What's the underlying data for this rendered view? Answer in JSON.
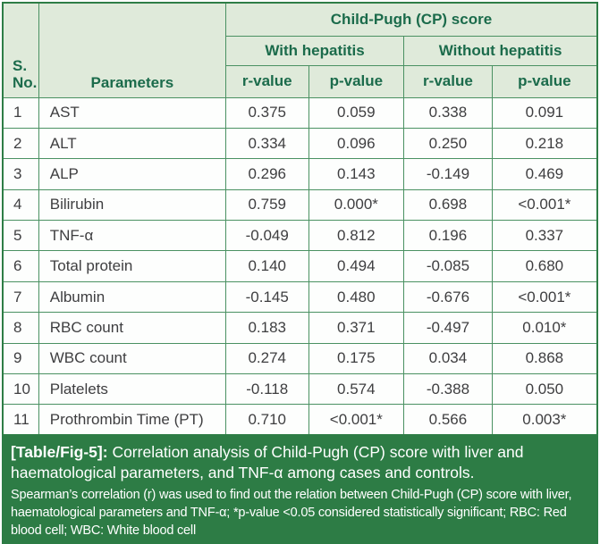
{
  "table": {
    "header": {
      "sno_line1": "S.",
      "sno_line2": "No.",
      "parameters": "Parameters",
      "group_title": "Child-Pugh (CP) score",
      "subgroups": [
        "With hepatitis",
        "Without hepatitis"
      ],
      "value_cols": [
        "r-value",
        "p-value",
        "r-value",
        "p-value"
      ]
    },
    "rows": [
      {
        "sno": "1",
        "parameter": "AST",
        "values": [
          "0.375",
          "0.059",
          "0.338",
          "0.091"
        ]
      },
      {
        "sno": "2",
        "parameter": "ALT",
        "values": [
          "0.334",
          "0.096",
          "0.250",
          "0.218"
        ]
      },
      {
        "sno": "3",
        "parameter": "ALP",
        "values": [
          "0.296",
          "0.143",
          "-0.149",
          "0.469"
        ]
      },
      {
        "sno": "4",
        "parameter": "Bilirubin",
        "values": [
          "0.759",
          "0.000*",
          "0.698",
          "<0.001*"
        ]
      },
      {
        "sno": "5",
        "parameter": "TNF-α",
        "values": [
          "-0.049",
          "0.812",
          "0.196",
          "0.337"
        ]
      },
      {
        "sno": "6",
        "parameter": "Total protein",
        "values": [
          "0.140",
          "0.494",
          "-0.085",
          "0.680"
        ]
      },
      {
        "sno": "7",
        "parameter": "Albumin",
        "values": [
          "-0.145",
          "0.480",
          "-0.676",
          "<0.001*"
        ]
      },
      {
        "sno": "8",
        "parameter": "RBC count",
        "values": [
          "0.183",
          "0.371",
          "-0.497",
          "0.010*"
        ]
      },
      {
        "sno": "9",
        "parameter": "WBC count",
        "values": [
          "0.274",
          "0.175",
          "0.034",
          "0.868"
        ]
      },
      {
        "sno": "10",
        "parameter": "Platelets",
        "values": [
          "-0.118",
          "0.574",
          "-0.388",
          "0.050"
        ]
      },
      {
        "sno": "11",
        "parameter": "Prothrombin Time (PT)",
        "values": [
          "0.710",
          "<0.001*",
          "0.566",
          "0.003*"
        ]
      }
    ]
  },
  "caption": {
    "label": "[Table/Fig-5]:",
    "title": "Correlation analysis of Child-Pugh (CP) score with liver and haematological parameters, and TNF-α among cases and controls.",
    "note": "Spearman’s correlation (r) was used to find out the relation between Child-Pugh (CP) score with liver, haematological parameters and TNF-α; *p-value <0.05 considered statistically significant; RBC: Red blood cell; WBC: White blood cell"
  },
  "colors": {
    "header_bg": "#dfeada",
    "header_text": "#1b6b4b",
    "border_inner": "#4a9162",
    "border_outer": "#2e7d46",
    "data_text": "#3e3e40",
    "caption_bg": "#2d7c45",
    "caption_text": "#ffffff"
  }
}
